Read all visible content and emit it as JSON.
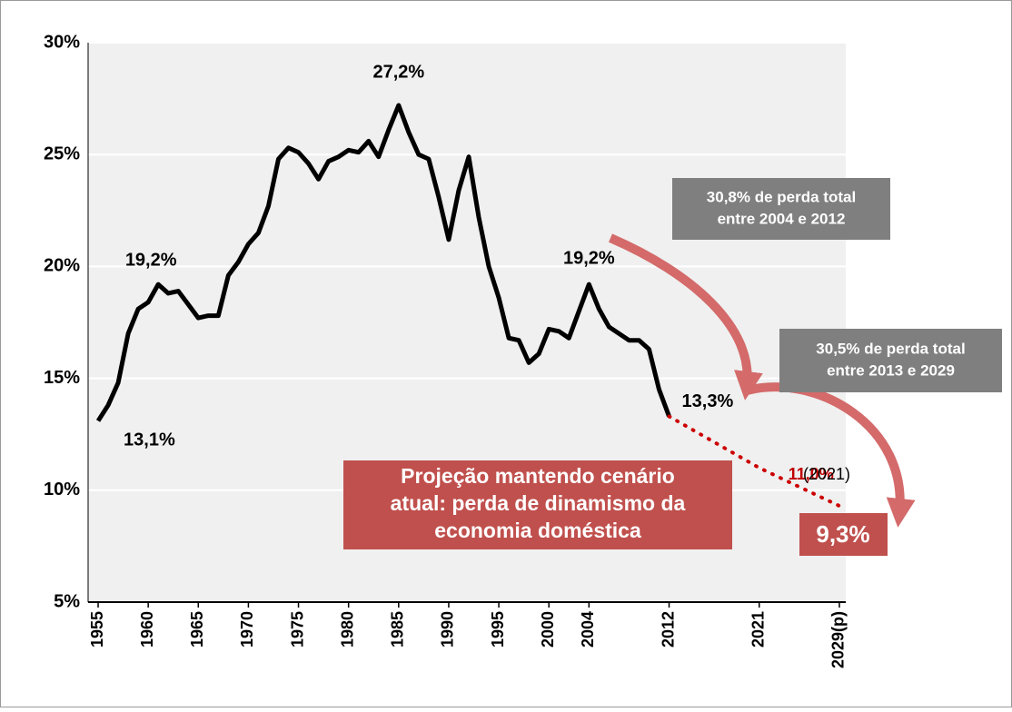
{
  "chart_data": {
    "type": "line",
    "x": [
      1955,
      1956,
      1957,
      1958,
      1959,
      1960,
      1961,
      1962,
      1963,
      1964,
      1965,
      1966,
      1967,
      1968,
      1969,
      1970,
      1971,
      1972,
      1973,
      1974,
      1975,
      1976,
      1977,
      1978,
      1979,
      1980,
      1981,
      1982,
      1983,
      1984,
      1985,
      1986,
      1987,
      1988,
      1989,
      1990,
      1991,
      1992,
      1993,
      1994,
      1995,
      1996,
      1997,
      1998,
      1999,
      2000,
      2001,
      2002,
      2003,
      2004,
      2005,
      2006,
      2007,
      2008,
      2009,
      2010,
      2011,
      2012
    ],
    "series": [
      {
        "color": "#000000",
        "values": [
          13.1,
          13.8,
          14.8,
          17.0,
          18.1,
          18.4,
          19.2,
          18.8,
          18.9,
          18.3,
          17.7,
          17.8,
          17.8,
          19.6,
          20.2,
          21.0,
          21.5,
          22.7,
          24.8,
          25.3,
          25.1,
          24.6,
          23.9,
          24.7,
          24.9,
          25.2,
          25.1,
          25.6,
          24.9,
          26.1,
          27.2,
          26.0,
          25.0,
          24.8,
          23.1,
          21.2,
          23.4,
          24.9,
          22.2,
          20.0,
          18.6,
          16.8,
          16.7,
          15.7,
          16.1,
          17.2,
          17.1,
          16.8,
          18.0,
          19.2,
          18.1,
          17.3,
          17.0,
          16.7,
          16.7,
          16.3,
          14.5,
          13.3
        ],
        "value_labels": [
          "13,1%",
          null,
          null,
          null,
          null,
          null,
          "19,2%",
          null,
          null,
          null,
          null,
          null,
          null,
          null,
          null,
          null,
          null,
          null,
          null,
          null,
          null,
          null,
          null,
          null,
          null,
          null,
          null,
          null,
          null,
          null,
          "27,2%",
          null,
          null,
          null,
          null,
          null,
          null,
          null,
          null,
          null,
          null,
          null,
          null,
          null,
          null,
          null,
          null,
          null,
          null,
          "19,2%",
          null,
          null,
          null,
          null,
          null,
          null,
          null,
          "13,3%"
        ]
      },
      {
        "color": "#cc0000",
        "dotted": true,
        "x": [
          2012,
          2021,
          2029
        ],
        "values": [
          13.3,
          11.0,
          9.3
        ],
        "value_labels": [
          null,
          "11,0%",
          "9,3%"
        ]
      }
    ],
    "xlim": [
      1954,
      2030
    ],
    "xticks": [
      1955,
      1960,
      1965,
      1970,
      1975,
      1980,
      1985,
      1990,
      1995,
      2000,
      2004,
      2012,
      2021,
      {
        "value": 2029,
        "label": "2029(p)"
      }
    ],
    "ylim": [
      5,
      30
    ],
    "yticks": [
      {
        "value": 5,
        "label": "5%"
      },
      {
        "value": 10,
        "label": "10%"
      },
      {
        "value": 15,
        "label": "15%"
      },
      {
        "value": 20,
        "label": "20%"
      },
      {
        "value": 25,
        "label": "25%"
      },
      {
        "value": 30,
        "label": "30%"
      }
    ],
    "grid": true,
    "annotations": [
      [
        "30,8% de perda total",
        "entre 2004 e 2012"
      ],
      [
        "30,5% de perda total",
        "entre 2013 e 2029"
      ],
      [
        "Projeção mantendo cenário",
        "atual: perda de dinamismo da",
        "economia doméstica"
      ],
      "(2021)"
    ]
  }
}
